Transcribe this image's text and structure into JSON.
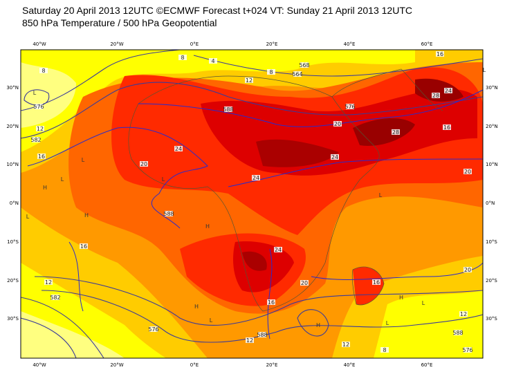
{
  "header": {
    "line1": "Saturday 20 April 2013 12UTC ©ECMWF Forecast t+024 VT: Sunday 21 April 2013 12UTC",
    "line2": "850 hPa Temperature / 500 hPa Geopotential"
  },
  "axes": {
    "lon_labels": [
      "40°W",
      "20°W",
      "0°E",
      "20°E",
      "40°E",
      "60°E"
    ],
    "lat_labels": [
      "30°N",
      "20°N",
      "10°N",
      "0°N",
      "10°S",
      "20°S",
      "30°S"
    ]
  },
  "contour_labels": [
    "8",
    "576",
    "12",
    "582",
    "16",
    "4",
    "8",
    "564",
    "12",
    "568",
    "588",
    "576",
    "20",
    "16",
    "24",
    "20",
    "24",
    "24",
    "28",
    "28",
    "24",
    "20",
    "588",
    "16",
    "24",
    "20",
    "12",
    "582",
    "576",
    "16",
    "12",
    "588",
    "12",
    "20",
    "16",
    "8",
    "588",
    "576",
    "12",
    "8",
    "16"
  ],
  "pressure_labels": [
    "L",
    "L",
    "H",
    "L",
    "H",
    "L",
    "H",
    "L",
    "L",
    "H",
    "L",
    "H",
    "L",
    "L",
    "H",
    "L"
  ]
}
